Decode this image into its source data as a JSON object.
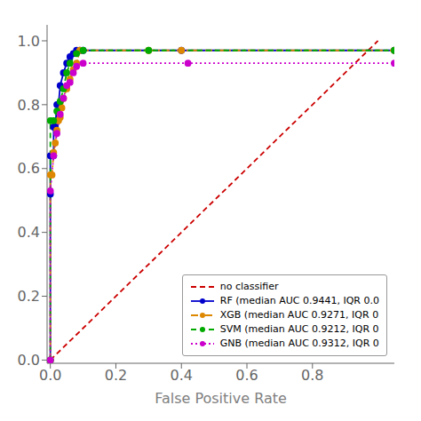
{
  "chart_data": {
    "type": "line",
    "x_label": "False Positive Rate",
    "xlim": [
      -0.01,
      1.05
    ],
    "ylim": [
      -0.01,
      1.05
    ],
    "xticks": [
      {
        "value": 0.0,
        "label": "0.0"
      },
      0.2,
      0.4,
      0.6,
      0.8
    ],
    "yticks": [
      {
        "value": 0.0,
        "label": "0.0"
      },
      0.2,
      0.4,
      0.6,
      0.8,
      {
        "value": 1.0,
        "label": "1.0"
      }
    ],
    "grid": false,
    "legend": "lower right",
    "series": [
      {
        "name": "no classifier",
        "color": "#cc0000",
        "line_style": "dashed",
        "x": [
          0,
          1
        ],
        "values": [
          0,
          1
        ]
      },
      {
        "name": "RF (median AUC 0.9441, IQR 0.0",
        "color": "#0000cc",
        "line_style": "solid",
        "marker": "circle",
        "x": [
          0.0,
          0.0,
          0.0,
          0.005,
          0.01,
          0.01,
          0.015,
          0.02,
          0.025,
          0.03,
          0.04,
          0.05,
          0.06,
          0.07,
          0.08,
          0.09,
          0.1,
          0.4,
          1.05
        ],
        "values": [
          0.0,
          0.52,
          0.64,
          0.64,
          0.64,
          0.73,
          0.73,
          0.8,
          0.8,
          0.86,
          0.9,
          0.93,
          0.95,
          0.96,
          0.97,
          0.97,
          0.97,
          0.97,
          0.97
        ]
      },
      {
        "name": "XGB (median AUC 0.9271, IQR 0",
        "color": "#dd8800",
        "line_style": "dashdot",
        "marker": "circle",
        "x": [
          0.0,
          0.0,
          0.005,
          0.01,
          0.015,
          0.02,
          0.025,
          0.03,
          0.035,
          0.04,
          0.05,
          0.06,
          0.07,
          0.08,
          0.09,
          0.3,
          0.4,
          1.05
        ],
        "values": [
          0.0,
          0.58,
          0.58,
          0.65,
          0.68,
          0.72,
          0.75,
          0.76,
          0.79,
          0.82,
          0.85,
          0.88,
          0.91,
          0.93,
          0.97,
          0.97,
          0.97,
          0.97
        ]
      },
      {
        "name": "SVM (median AUC 0.9212, IQR 0",
        "color": "#00aa00",
        "line_style": "dashed",
        "marker": "circle",
        "x": [
          0.0,
          0.0,
          0.01,
          0.02,
          0.03,
          0.04,
          0.05,
          0.06,
          0.08,
          0.1,
          0.3,
          1.05
        ],
        "values": [
          0.0,
          0.75,
          0.75,
          0.78,
          0.81,
          0.85,
          0.9,
          0.93,
          0.96,
          0.97,
          0.97,
          0.97
        ]
      },
      {
        "name": "GNB (median AUC 0.9312, IQR 0",
        "color": "#cc00cc",
        "line_style": "dotted",
        "marker": "circle",
        "x": [
          0.0,
          0.0,
          0.01,
          0.02,
          0.03,
          0.04,
          0.05,
          0.06,
          0.07,
          0.08,
          0.1,
          0.42,
          1.05
        ],
        "values": [
          0.0,
          0.53,
          0.64,
          0.71,
          0.77,
          0.82,
          0.86,
          0.87,
          0.9,
          0.92,
          0.93,
          0.93,
          0.93
        ]
      }
    ]
  }
}
